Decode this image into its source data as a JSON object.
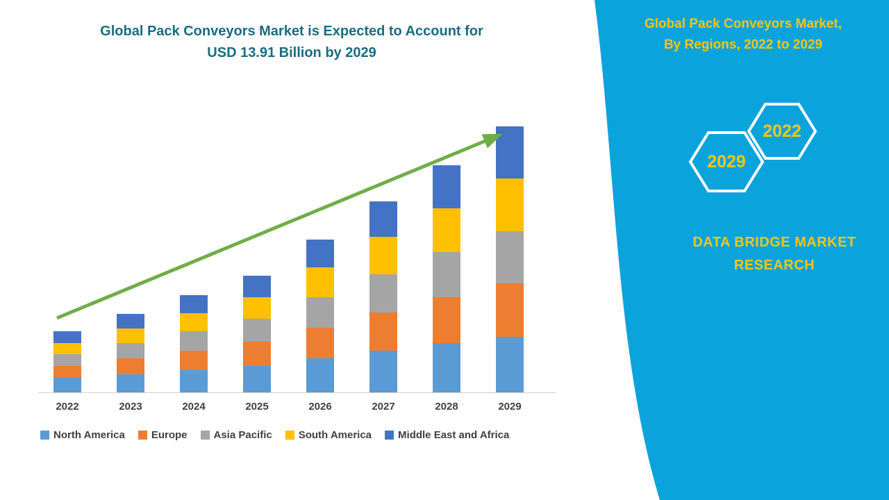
{
  "title": {
    "lines": [
      "Global Pack Conveyors Market is Expected to Account for",
      "USD 13.91 Billion by 2029"
    ],
    "color": "#186C80"
  },
  "right_panel": {
    "bg_color": "#0BA3DC",
    "accent_color": "#F2C714",
    "title_lines": [
      "Global Pack Conveyors Market,",
      "By Regions, 2022 to 2029"
    ],
    "hexagons": [
      {
        "label": "2029"
      },
      {
        "label": "2022"
      }
    ],
    "brand_lines": [
      "DATA BRIDGE MARKET",
      "RESEARCH"
    ]
  },
  "chart_data": {
    "type": "bar",
    "stacked": true,
    "title": "Global Pack Conveyors Market is Expected to Account for USD 13.91 Billion by 2029",
    "unit": "USD Billion",
    "categories": [
      "2022",
      "2023",
      "2024",
      "2025",
      "2026",
      "2027",
      "2028",
      "2029"
    ],
    "series": [
      {
        "name": "North America",
        "color": "#5B9BD5",
        "values": [
          0.75,
          0.95,
          1.15,
          1.4,
          1.8,
          2.2,
          2.6,
          2.9
        ]
      },
      {
        "name": "Europe",
        "color": "#ED7D31",
        "values": [
          0.65,
          0.85,
          1.05,
          1.25,
          1.6,
          2.0,
          2.4,
          2.8
        ]
      },
      {
        "name": "Asia Pacific",
        "color": "#A5A5A5",
        "values": [
          0.6,
          0.8,
          1.0,
          1.2,
          1.6,
          2.0,
          2.35,
          2.75
        ]
      },
      {
        "name": "South America",
        "color": "#FFC000",
        "values": [
          0.6,
          0.75,
          0.95,
          1.15,
          1.55,
          1.95,
          2.3,
          2.75
        ]
      },
      {
        "name": "Middle East and Africa",
        "color": "#4472C4",
        "values": [
          0.6,
          0.75,
          0.95,
          1.1,
          1.45,
          1.85,
          2.25,
          2.71
        ]
      }
    ],
    "ylim": [
      0,
      14
    ],
    "yaxis_visible": false,
    "gridlines": false,
    "legend_position": "bottom",
    "trend_color": "#70AD47"
  }
}
